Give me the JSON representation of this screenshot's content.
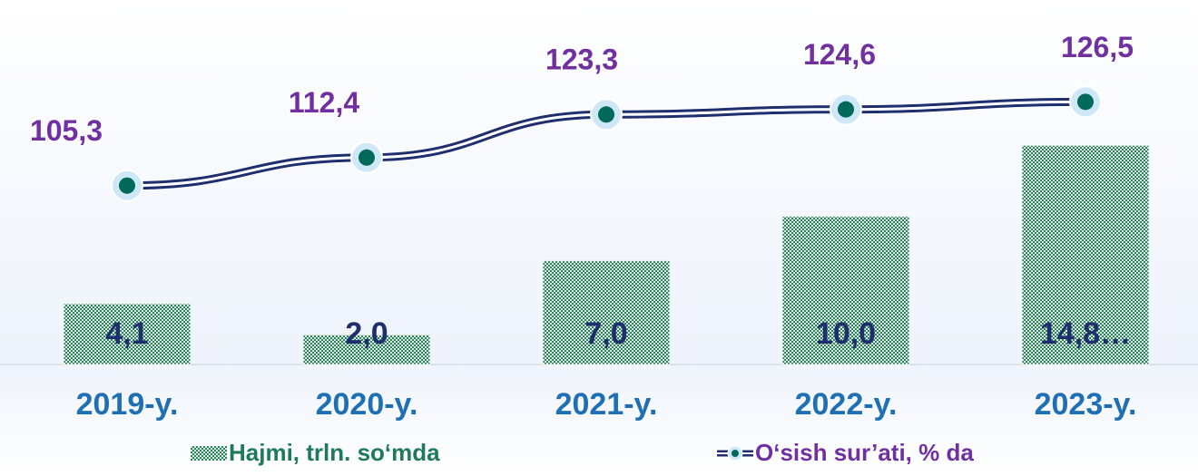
{
  "chart_data": {
    "type": "bar",
    "categories": [
      "2019-y.",
      "2020-y.",
      "2021-y.",
      "2022-y.",
      "2023-y."
    ],
    "series": [
      {
        "name": "Hajmi, trln. so‘mda",
        "type": "bar",
        "color": "#2e8060",
        "values": [
          4.1,
          2.0,
          7.0,
          10.0,
          14.8
        ],
        "value_labels": [
          "4,1",
          "2,0",
          "7,0",
          "10,0",
          "14,8…"
        ]
      },
      {
        "name": "O‘sish sur’ati, % da",
        "type": "line",
        "axis": "y2",
        "color": "#1f2f6e",
        "values": [
          105.3,
          112.4,
          123.3,
          124.6,
          126.5
        ],
        "value_labels": [
          "105,3",
          "112,4",
          "123,3",
          "124,6",
          "126,5"
        ]
      }
    ],
    "ylim": [
      0,
      24
    ],
    "y2lim": [
      60,
      150
    ]
  }
}
